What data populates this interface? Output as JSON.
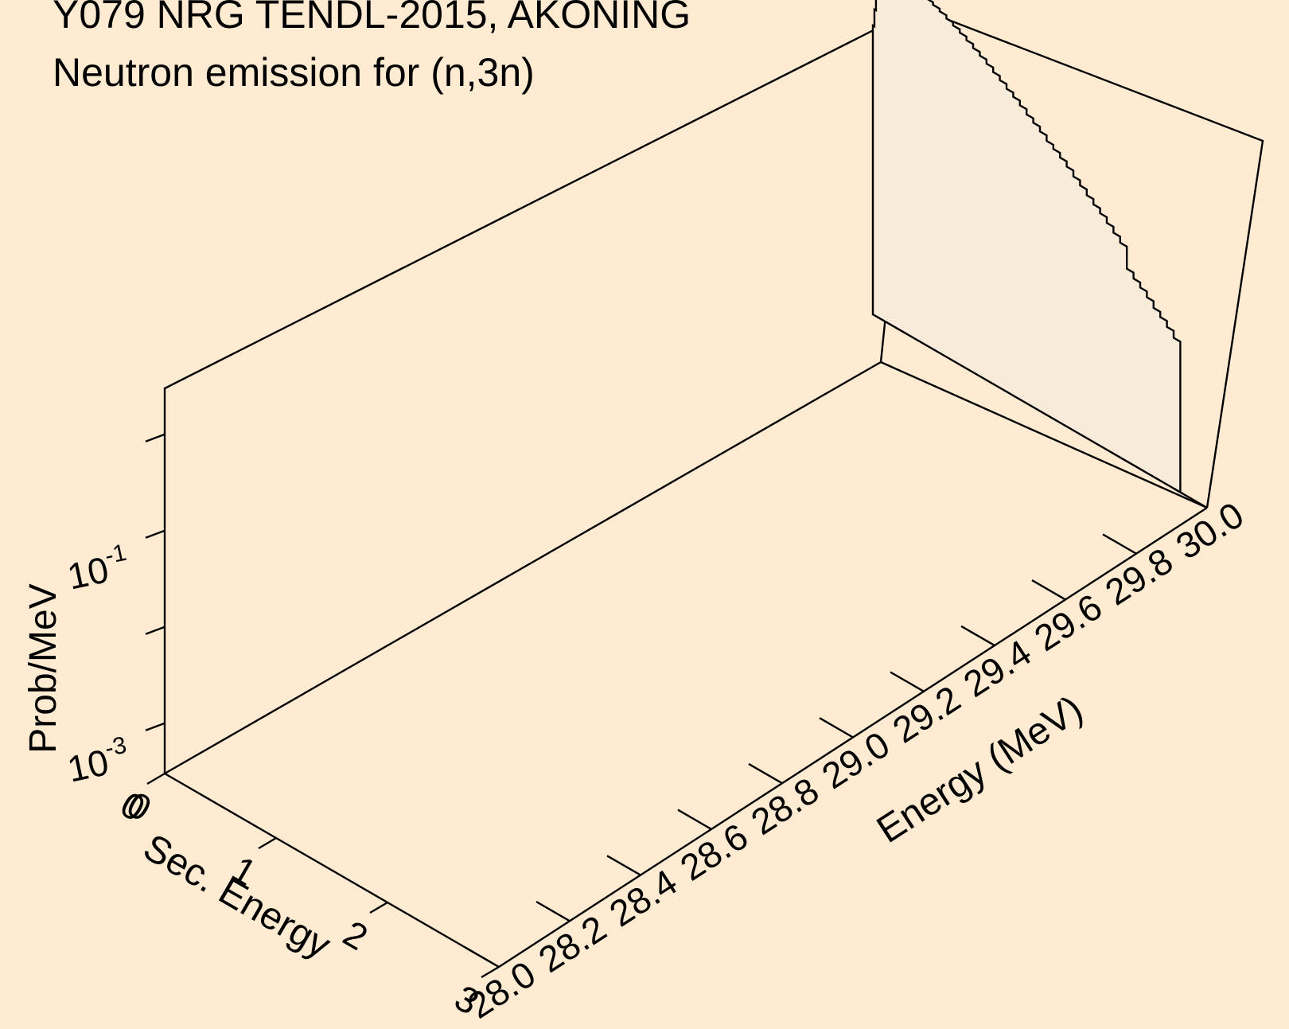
{
  "chart_data": {
    "type": "area",
    "title": "Y079 NRG TENDL-2015, AKONING",
    "subtitle": "Neutron emission for (n,3n)",
    "xlabel": "Sec. Energy",
    "ylabel": "Energy (MeV)",
    "zlabel": "Prob/MeV",
    "xlim": [
      0,
      3
    ],
    "ylim": [
      28.0,
      30.0
    ],
    "zscale": "log",
    "zlim": [
      0.0003,
      3.0
    ],
    "x_ticks": [
      "0",
      "1",
      "2",
      "3"
    ],
    "y_ticks": [
      "28.0",
      "28.2",
      "28.4",
      "28.6",
      "28.8",
      "29.0",
      "29.2",
      "29.4",
      "29.6",
      "29.8",
      "30.0"
    ],
    "z_ticks": [
      {
        "value": 0.001,
        "base": "10",
        "exp": "-3"
      },
      {
        "value": 0.1,
        "base": "10",
        "exp": "-1"
      }
    ],
    "z_minor_ticks": [
      0.01,
      1.0
    ],
    "grid": false,
    "fill_color": "#f9ebda",
    "background_color": "#ffebd1",
    "series": [
      {
        "incident_energy": 30.0,
        "x": [
          0.0,
          0.014,
          0.028,
          0.05,
          0.085,
          0.13,
          0.18,
          0.24,
          0.3,
          0.36,
          0.42,
          0.48,
          0.54,
          0.6,
          0.66,
          0.72,
          0.78,
          0.84,
          0.9,
          0.96,
          1.02,
          1.08,
          1.14,
          1.2,
          1.26,
          1.32,
          1.38,
          1.44,
          1.5,
          1.56,
          1.62,
          1.68,
          1.74,
          1.8,
          1.86,
          1.92,
          1.98,
          2.04,
          2.1,
          2.16,
          2.22,
          2.28,
          2.34,
          2.4,
          2.46,
          2.52,
          2.58,
          2.64,
          2.7
        ],
        "y": [
          0.3,
          0.45,
          0.62,
          0.84,
          1.04,
          1.18,
          1.26,
          1.3,
          1.3,
          1.28,
          1.24,
          1.2,
          1.13,
          1.06,
          0.98,
          0.91,
          0.84,
          0.77,
          0.7,
          0.64,
          0.58,
          0.52,
          0.47,
          0.42,
          0.38,
          0.34,
          0.3,
          0.27,
          0.24,
          0.21,
          0.19,
          0.17,
          0.15,
          0.13,
          0.115,
          0.1,
          0.088,
          0.078,
          0.068,
          0.059,
          0.051,
          0.03,
          0.026,
          0.023,
          0.02,
          0.017,
          0.015,
          0.013,
          0.011
        ]
      }
    ]
  }
}
